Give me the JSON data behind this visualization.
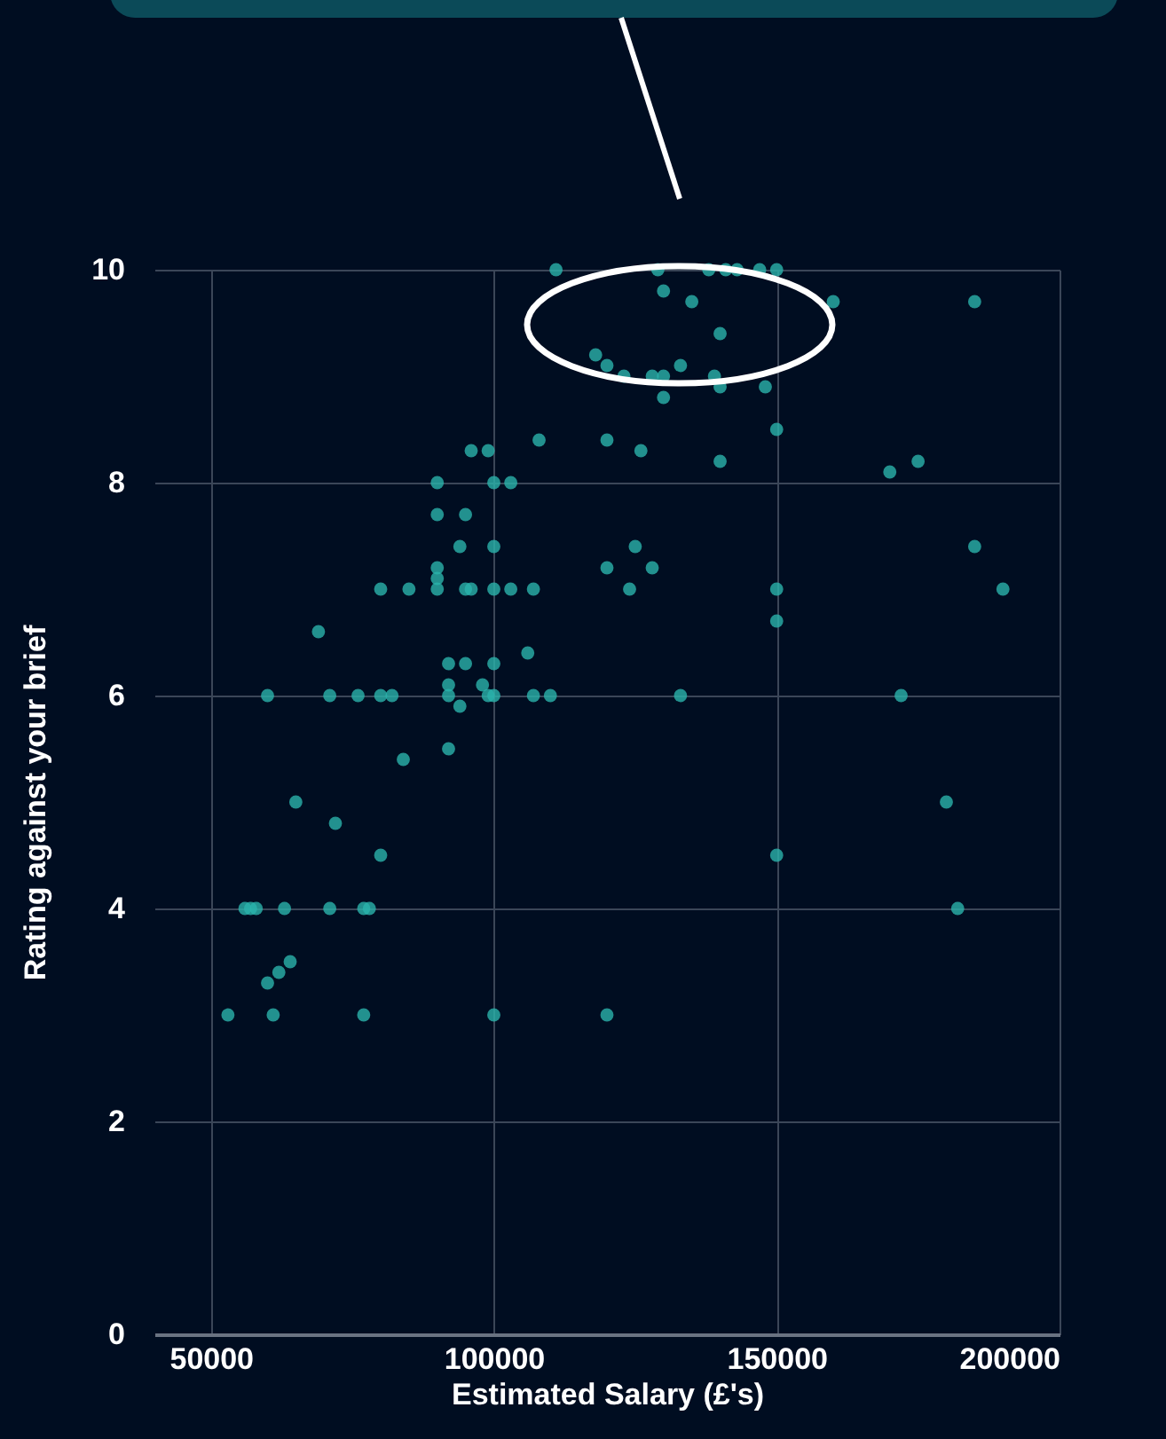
{
  "chart_data": {
    "type": "scatter",
    "xlabel": "Estimated Salary (£'s)",
    "ylabel": "Rating against your brief",
    "x": [
      111000,
      129000,
      138000,
      141000,
      143000,
      147000,
      150000,
      130000,
      135000,
      160000,
      185000,
      140000,
      118000,
      120000,
      133000,
      123000,
      128000,
      130000,
      139000,
      140000,
      148000,
      130000,
      150000,
      108000,
      120000,
      96000,
      99000,
      126000,
      140000,
      175000,
      170000,
      90000,
      100000,
      103000,
      90000,
      95000,
      94000,
      100000,
      125000,
      185000,
      90000,
      120000,
      128000,
      90000,
      80000,
      85000,
      90000,
      95000,
      96000,
      100000,
      103000,
      107000,
      124000,
      150000,
      190000,
      150000,
      69000,
      106000,
      92000,
      95000,
      100000,
      92000,
      98000,
      60000,
      71000,
      76000,
      80000,
      82000,
      92000,
      99000,
      100000,
      107000,
      110000,
      133000,
      172000,
      94000,
      92000,
      84000,
      65000,
      180000,
      72000,
      80000,
      150000,
      56000,
      57000,
      58000,
      63000,
      71000,
      77000,
      78000,
      182000,
      64000,
      62000,
      60000,
      53000,
      61000,
      77000,
      100000,
      120000
    ],
    "values": [
      10,
      10,
      10,
      10,
      10,
      10,
      10,
      9.8,
      9.7,
      9.7,
      9.7,
      9.4,
      9.2,
      9.1,
      9.1,
      9,
      9,
      9,
      9,
      8.9,
      8.9,
      8.8,
      8.5,
      8.4,
      8.4,
      8.3,
      8.3,
      8.3,
      8.2,
      8.2,
      8.1,
      8,
      8,
      8,
      7.7,
      7.7,
      7.4,
      7.4,
      7.4,
      7.4,
      7.2,
      7.2,
      7.2,
      7.1,
      7,
      7,
      7,
      7,
      7,
      7,
      7,
      7,
      7,
      7,
      7,
      6.7,
      6.6,
      6.4,
      6.3,
      6.3,
      6.3,
      6.1,
      6.1,
      6,
      6,
      6,
      6,
      6,
      6,
      6,
      6,
      6,
      6,
      6,
      6,
      5.9,
      5.5,
      5.4,
      5,
      5,
      4.8,
      4.5,
      4.5,
      4,
      4,
      4,
      4,
      4,
      4,
      4,
      4,
      3.5,
      3.4,
      3.3,
      3,
      3,
      3,
      3,
      3
    ],
    "color": "#2bb3ab",
    "marker": "circle",
    "xlim": [
      40000,
      200000
    ],
    "xticks": [
      50000,
      100000,
      150000,
      200000
    ],
    "ylim": [
      0,
      10
    ],
    "yticks": [
      0,
      2,
      4,
      6,
      8,
      10
    ],
    "grid": true
  }
}
